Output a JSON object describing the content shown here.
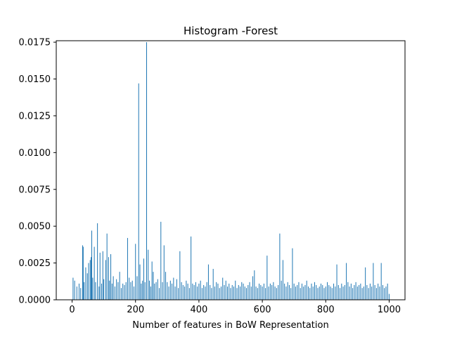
{
  "chart_data": {
    "type": "bar",
    "title": "Histogram -Forest",
    "xlabel": "Number of features in BoW Representation",
    "ylabel": "",
    "xlim": [
      -50,
      1050
    ],
    "ylim": [
      0,
      0.0176
    ],
    "x_ticks": [
      0,
      200,
      400,
      600,
      800,
      1000
    ],
    "x_tick_labels": [
      "0",
      "200",
      "400",
      "600",
      "800",
      "1000"
    ],
    "y_ticks": [
      0,
      0.0025,
      0.005,
      0.0075,
      0.01,
      0.0125,
      0.015,
      0.0175
    ],
    "y_tick_labels": [
      "0.0000",
      "0.0025",
      "0.0050",
      "0.0075",
      "0.0100",
      "0.0125",
      "0.0150",
      "0.0175"
    ],
    "bar_color": "#1f77b4",
    "grid": false,
    "legend": "none",
    "series": [
      {
        "x": [
          3,
          8,
          15,
          22,
          27,
          33,
          35,
          38,
          43,
          48,
          52,
          57,
          60,
          62,
          65,
          70,
          74,
          80,
          85,
          88,
          93,
          97,
          100,
          106,
          110,
          115,
          118,
          122,
          126,
          130,
          135,
          140,
          145,
          150,
          155,
          160,
          165,
          170,
          175,
          180,
          185,
          190,
          195,
          200,
          205,
          210,
          214,
          218,
          222,
          226,
          230,
          235,
          240,
          244,
          248,
          252,
          256,
          260,
          265,
          270,
          275,
          280,
          285,
          290,
          295,
          300,
          305,
          310,
          315,
          320,
          325,
          330,
          335,
          340,
          345,
          350,
          355,
          360,
          365,
          370,
          375,
          380,
          385,
          390,
          395,
          400,
          405,
          410,
          415,
          420,
          425,
          430,
          435,
          440,
          445,
          450,
          455,
          460,
          465,
          470,
          475,
          480,
          485,
          490,
          495,
          500,
          505,
          510,
          515,
          520,
          525,
          530,
          535,
          540,
          545,
          550,
          555,
          560,
          565,
          570,
          575,
          580,
          585,
          590,
          595,
          600,
          605,
          610,
          615,
          620,
          625,
          630,
          635,
          640,
          645,
          650,
          655,
          660,
          665,
          670,
          675,
          680,
          685,
          690,
          695,
          700,
          705,
          710,
          715,
          720,
          725,
          730,
          735,
          740,
          745,
          750,
          755,
          760,
          765,
          770,
          775,
          780,
          785,
          790,
          795,
          800,
          805,
          810,
          815,
          820,
          825,
          830,
          835,
          840,
          845,
          850,
          855,
          860,
          865,
          870,
          875,
          880,
          885,
          890,
          895,
          900,
          905,
          910,
          915,
          920,
          925,
          930,
          935,
          940,
          945,
          950,
          955,
          960,
          965,
          970,
          975,
          980,
          985,
          990,
          995,
          1000
        ],
        "values": [
          0.0015,
          0.0013,
          0.0009,
          0.0011,
          0.0008,
          0.0037,
          0.0036,
          0.0012,
          0.0022,
          0.0018,
          0.0025,
          0.0027,
          0.0029,
          0.0047,
          0.0015,
          0.0036,
          0.0012,
          0.0052,
          0.0009,
          0.0032,
          0.0011,
          0.0033,
          0.0014,
          0.0027,
          0.0045,
          0.0029,
          0.0013,
          0.0031,
          0.0011,
          0.0016,
          0.0009,
          0.0014,
          0.0012,
          0.0019,
          0.0008,
          0.0011,
          0.001,
          0.0012,
          0.0042,
          0.0015,
          0.0012,
          0.0013,
          0.0009,
          0.0038,
          0.0016,
          0.0147,
          0.0024,
          0.0011,
          0.0013,
          0.0028,
          0.0012,
          0.0175,
          0.0034,
          0.0013,
          0.0009,
          0.0026,
          0.0019,
          0.0011,
          0.0012,
          0.0014,
          0.0008,
          0.0053,
          0.0012,
          0.0037,
          0.0019,
          0.0012,
          0.0009,
          0.0013,
          0.0011,
          0.0015,
          0.0009,
          0.0014,
          0.0008,
          0.0033,
          0.0012,
          0.001,
          0.0009,
          0.0013,
          0.0011,
          0.0008,
          0.0043,
          0.0011,
          0.001,
          0.0012,
          0.0009,
          0.0011,
          0.0013,
          0.0008,
          0.001,
          0.0009,
          0.0012,
          0.0024,
          0.001,
          0.0008,
          0.0021,
          0.0009,
          0.0012,
          0.0011,
          0.0008,
          0.0009,
          0.0015,
          0.001,
          0.0013,
          0.0009,
          0.0011,
          0.0008,
          0.001,
          0.0009,
          0.0013,
          0.0008,
          0.001,
          0.0009,
          0.0012,
          0.0011,
          0.0009,
          0.0008,
          0.001,
          0.0012,
          0.0009,
          0.0016,
          0.002,
          0.0009,
          0.0008,
          0.0011,
          0.001,
          0.0009,
          0.0011,
          0.0008,
          0.003,
          0.0009,
          0.0011,
          0.001,
          0.0012,
          0.0009,
          0.0008,
          0.001,
          0.0045,
          0.0013,
          0.0027,
          0.0011,
          0.0009,
          0.0012,
          0.001,
          0.0008,
          0.0035,
          0.0011,
          0.0009,
          0.001,
          0.0012,
          0.0008,
          0.0011,
          0.0009,
          0.001,
          0.0013,
          0.0009,
          0.0008,
          0.0011,
          0.0009,
          0.0012,
          0.001,
          0.0008,
          0.0009,
          0.0011,
          0.001,
          0.0008,
          0.0009,
          0.0012,
          0.001,
          0.0009,
          0.0008,
          0.0011,
          0.0009,
          0.0024,
          0.001,
          0.0008,
          0.0011,
          0.0009,
          0.001,
          0.0025,
          0.0012,
          0.0009,
          0.0011,
          0.0008,
          0.001,
          0.0012,
          0.0009,
          0.001,
          0.0011,
          0.0008,
          0.0009,
          0.0022,
          0.001,
          0.0008,
          0.0011,
          0.0009,
          0.0025,
          0.001,
          0.0008,
          0.0011,
          0.0009,
          0.0025,
          0.001,
          0.0008,
          0.0009,
          0.0011,
          0.0004
        ]
      }
    ]
  }
}
